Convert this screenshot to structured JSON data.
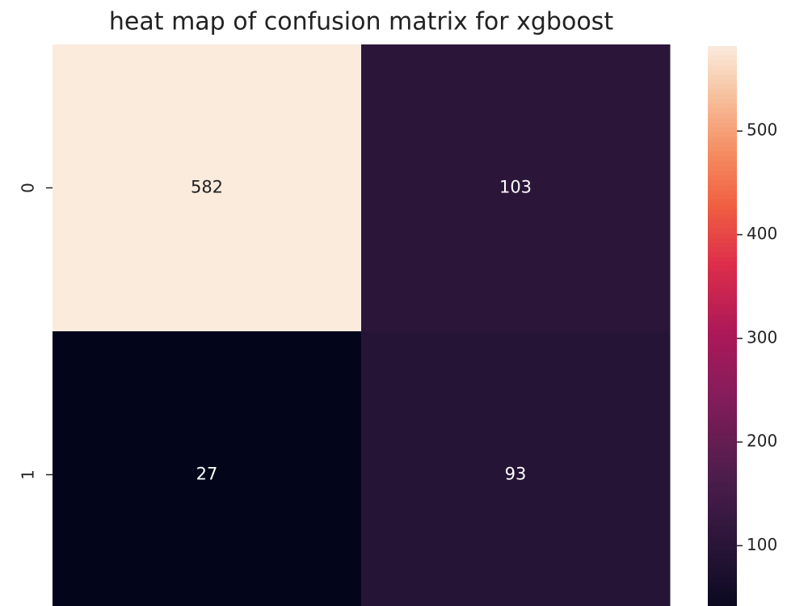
{
  "chart_data": {
    "type": "heatmap",
    "title": "heat map of confusion matrix for xgboost",
    "y_categories": [
      "0",
      "1"
    ],
    "values": [
      [
        582,
        103
      ],
      [
        27,
        93
      ]
    ],
    "colormap": "rocket",
    "clim": [
      27,
      582
    ],
    "cticks": [
      100,
      200,
      300,
      400,
      500
    ]
  }
}
